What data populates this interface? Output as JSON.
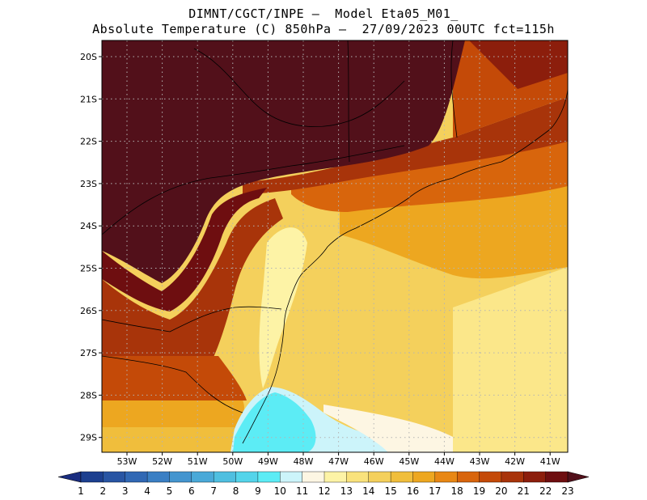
{
  "header": {
    "line1": "DIMNT/CGCT/INPE —  Model Eta05_M01_",
    "line2": "Absolute Temperature (C) 850hPa —  27/09/2023 00UTC fct=115h"
  },
  "map": {
    "lat_labels": [
      "20S",
      "21S",
      "22S",
      "23S",
      "24S",
      "25S",
      "26S",
      "27S",
      "28S",
      "29S"
    ],
    "lon_labels": [
      "53W",
      "52W",
      "51W",
      "50W",
      "49W",
      "48W",
      "47W",
      "46W",
      "45W",
      "44W",
      "43W",
      "42W",
      "41W"
    ],
    "grid": "dotted",
    "variable": "temperature",
    "level": "850hPa"
  },
  "colorbar": {
    "labels": [
      "1",
      "2",
      "3",
      "4",
      "5",
      "6",
      "7",
      "8",
      "9",
      "10",
      "11",
      "12",
      "13",
      "14",
      "15",
      "16",
      "17",
      "18",
      "19",
      "20",
      "21",
      "22",
      "23"
    ],
    "colors": [
      "#1c3f8f",
      "#2855a3",
      "#3068b4",
      "#3a7fc4",
      "#4495cf",
      "#4aa9d8",
      "#4fbfe0",
      "#54d4ea",
      "#5cecf5",
      "#ccf4fa",
      "#fdf6e3",
      "#fdf3a6",
      "#f9e27c",
      "#f4d05c",
      "#f0be3c",
      "#eda720",
      "#e88714",
      "#d8650c",
      "#c44a08",
      "#a8340a",
      "#8c1e0c",
      "#6e0e10"
    ],
    "under_color": "#1a2d80",
    "over_color": "#52101a"
  }
}
